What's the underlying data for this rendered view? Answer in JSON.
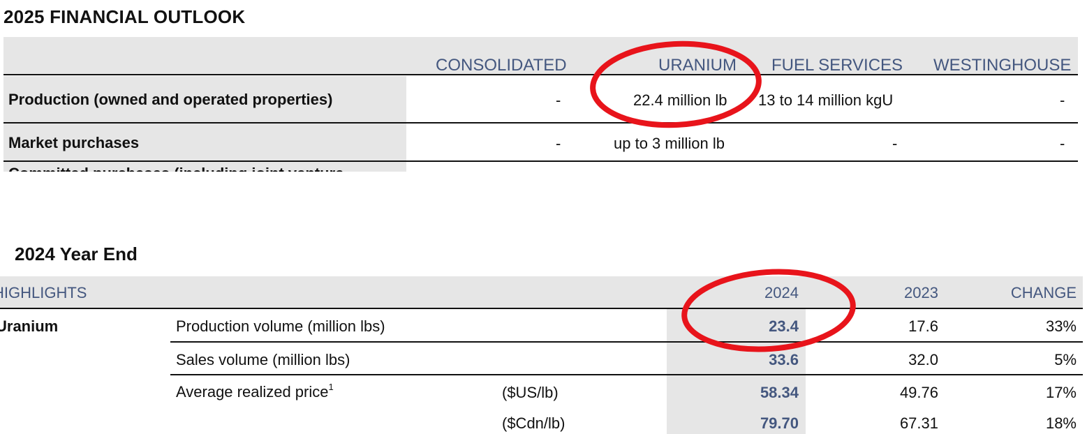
{
  "outlook": {
    "title": "2025 FINANCIAL OUTLOOK",
    "columns": [
      "CONSOLIDATED",
      "URANIUM",
      "FUEL SERVICES",
      "WESTINGHOUSE"
    ],
    "rows": [
      {
        "label": "Production (owned and operated properties)",
        "consolidated": "-",
        "uranium": "22.4 million lb",
        "fuel_services": "13 to 14 million kgU",
        "westinghouse": "-"
      },
      {
        "label": "Market purchases",
        "consolidated": "-",
        "uranium": "up to 3 million lb",
        "fuel_services": "-",
        "westinghouse": "-"
      }
    ],
    "cut_row_label": "Committed purchases (including joint venture"
  },
  "year_end": {
    "title": "2024 Year End",
    "header": {
      "label": "HIGHLIGHTS",
      "col_2024": "2024",
      "col_2023": "2023",
      "col_change": "CHANGE"
    },
    "segment": "Uranium",
    "rows": [
      {
        "metric": "Production volume (million lbs)",
        "unit": "",
        "v2024": "23.4",
        "v2023": "17.6",
        "change": "33%"
      },
      {
        "metric": "Sales volume (million lbs)",
        "unit": "",
        "v2024": "33.6",
        "v2023": "32.0",
        "change": "5%"
      },
      {
        "metric": "Average realized price",
        "footnote": "1",
        "unit": "($US/lb)",
        "v2024": "58.34",
        "v2023": "49.76",
        "change": "17%"
      },
      {
        "metric": "",
        "unit": "($Cdn/lb)",
        "v2024": "79.70",
        "v2023": "67.31",
        "change": "18%"
      }
    ]
  },
  "annotations": {
    "circle_color": "#e8141b"
  }
}
